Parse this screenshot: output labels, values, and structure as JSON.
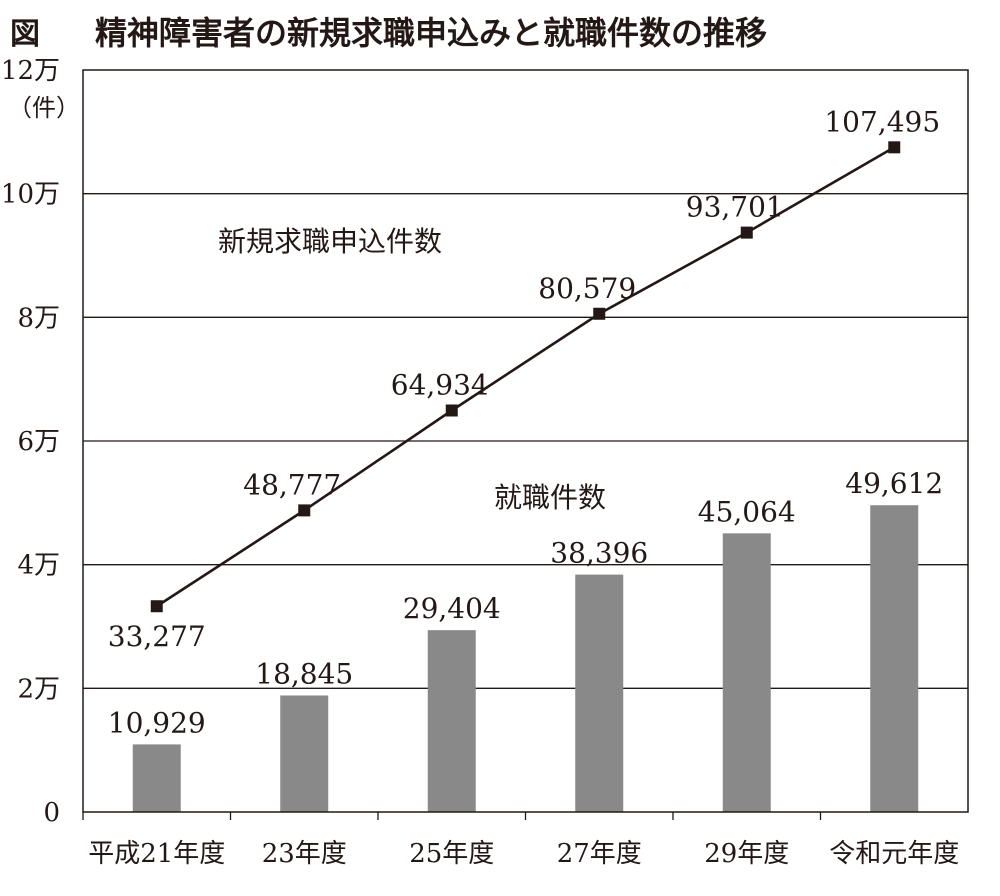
{
  "title": {
    "prefix": "図",
    "text": "精神障害者の新規求職申込みと就職件数の推移"
  },
  "colors": {
    "bar": "#898989",
    "line": "#231815",
    "grid": "#231815",
    "text": "#231815"
  },
  "chart_data": {
    "type": "bar+line",
    "categories": [
      "平成21年度",
      "23年度",
      "25年度",
      "27年度",
      "29年度",
      "令和元年度"
    ],
    "y_unit_label": "（件）",
    "ylim": [
      0,
      120000
    ],
    "y_ticks": [
      {
        "value": 0,
        "label": "0"
      },
      {
        "value": 20000,
        "label": "2万"
      },
      {
        "value": 40000,
        "label": "4万"
      },
      {
        "value": 60000,
        "label": "6万"
      },
      {
        "value": 80000,
        "label": "8万"
      },
      {
        "value": 100000,
        "label": "10万"
      },
      {
        "value": 120000,
        "label": "12万"
      }
    ],
    "grid": true,
    "series": [
      {
        "name": "新規求職申込件数",
        "type": "line",
        "values": [
          33277,
          48777,
          64934,
          80579,
          93701,
          107495
        ],
        "labels": [
          "33,277",
          "48,777",
          "64,934",
          "80,579",
          "93,701",
          "107,495"
        ]
      },
      {
        "name": "就職件数",
        "type": "bar",
        "values": [
          10929,
          18845,
          29404,
          38396,
          45064,
          49612
        ],
        "labels": [
          "10,929",
          "18,845",
          "29,404",
          "38,396",
          "45,064",
          "49,612"
        ]
      }
    ]
  }
}
